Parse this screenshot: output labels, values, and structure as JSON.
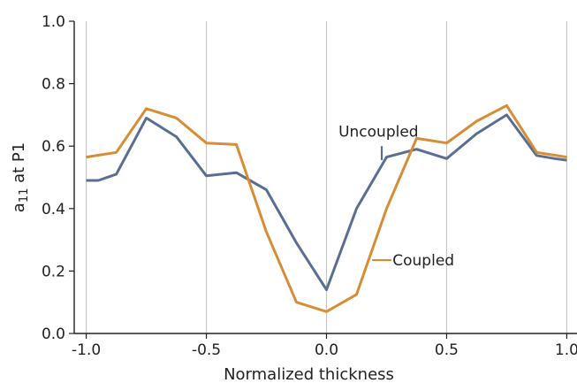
{
  "chart_data": {
    "type": "line",
    "xlabel": "Normalized thickness",
    "ylabel": {
      "base": "a",
      "sub": "11",
      "rest": " at P1"
    },
    "xlim": [
      -1.05,
      1.05
    ],
    "ylim": [
      0.0,
      1.0
    ],
    "xticks": [
      -1.0,
      -0.5,
      0.0,
      0.5,
      1.0
    ],
    "xtick_labels": [
      "-1.0",
      "-0.5",
      "0.0",
      "0.5",
      "1.0"
    ],
    "yticks": [
      0.0,
      0.2,
      0.4,
      0.6,
      0.8,
      1.0
    ],
    "ytick_labels": [
      "0.0",
      "0.2",
      "0.4",
      "0.6",
      "0.8",
      "1.0"
    ],
    "grid": "vertical",
    "series": [
      {
        "name": "Uncoupled",
        "color": "#5a6e94",
        "x": [
          -1.0,
          -0.95,
          -0.875,
          -0.75,
          -0.625,
          -0.5,
          -0.375,
          -0.25,
          -0.125,
          0.0,
          0.125,
          0.25,
          0.375,
          0.5,
          0.625,
          0.75,
          0.875,
          0.95,
          1.0
        ],
        "y": [
          0.49,
          0.49,
          0.51,
          0.69,
          0.63,
          0.505,
          0.515,
          0.46,
          0.29,
          0.14,
          0.4,
          0.565,
          0.59,
          0.56,
          0.64,
          0.7,
          0.57,
          0.56,
          0.555
        ]
      },
      {
        "name": "Coupled",
        "color": "#d68d35",
        "x": [
          -1.0,
          -0.875,
          -0.75,
          -0.625,
          -0.5,
          -0.375,
          -0.25,
          -0.125,
          0.0,
          0.125,
          0.25,
          0.375,
          0.5,
          0.625,
          0.75,
          0.875,
          1.0
        ],
        "y": [
          0.565,
          0.58,
          0.72,
          0.69,
          0.61,
          0.605,
          0.325,
          0.1,
          0.07,
          0.125,
          0.4,
          0.625,
          0.61,
          0.68,
          0.73,
          0.58,
          0.565
        ]
      }
    ],
    "annotations": [
      {
        "text": "Uncoupled",
        "series": "Uncoupled"
      },
      {
        "text": "Coupled",
        "series": "Coupled"
      }
    ]
  }
}
